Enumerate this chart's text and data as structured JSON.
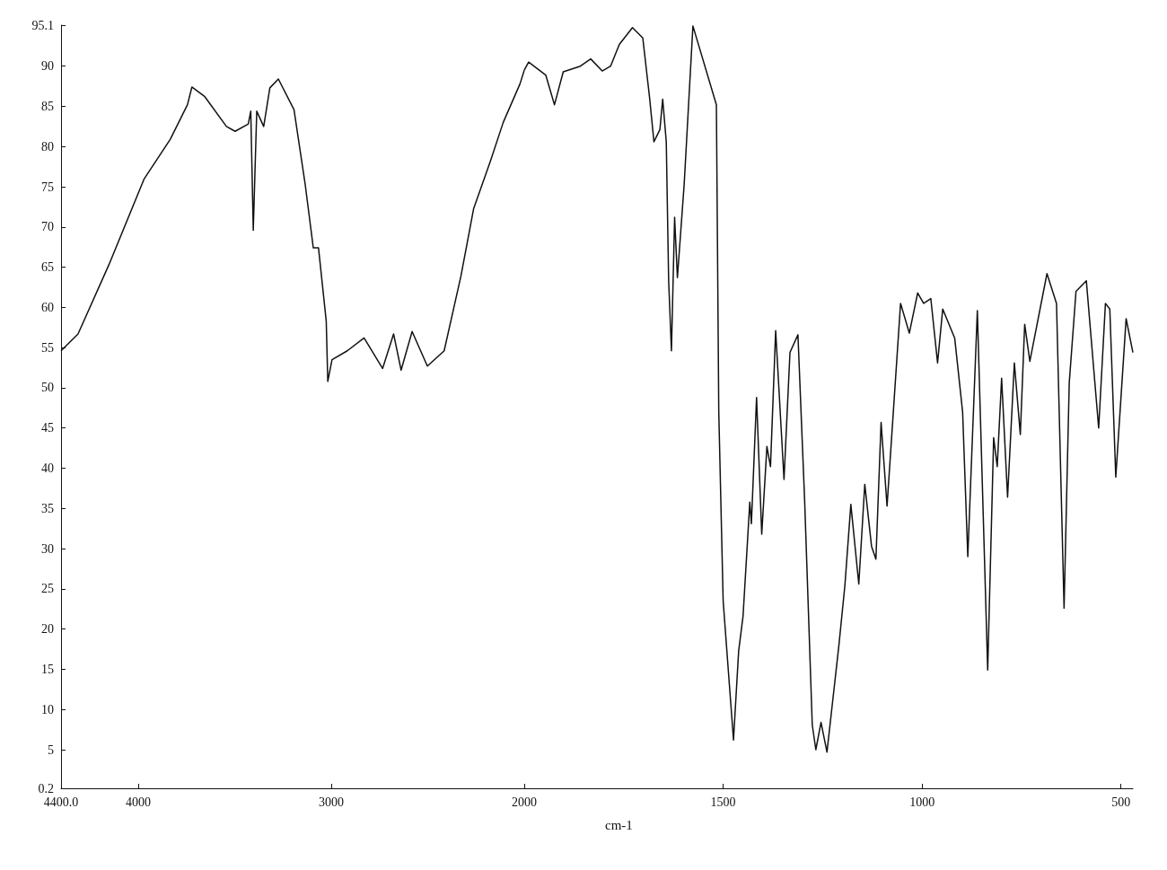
{
  "chart_data": [
    {
      "type": "line",
      "xlim": [
        4400,
        2000
      ],
      "ylim": [
        0.2,
        95.1
      ],
      "xticks": [
        {
          "value": 4400,
          "label": "4400.0"
        },
        4000,
        3000,
        2000
      ],
      "yticks": [
        0.2,
        5,
        10,
        15,
        20,
        25,
        30,
        35,
        40,
        45,
        50,
        55,
        60,
        65,
        70,
        75,
        80,
        85,
        90,
        95.1
      ],
      "grid": false,
      "marker": "none",
      "line_style": "solid",
      "series": [
        {
          "color": "#111111",
          "x": [
            4400,
            4312,
            4152,
            3969,
            3834,
            3745,
            3722,
            3655,
            3543,
            3498,
            3430,
            3417,
            3404,
            3386,
            3350,
            3318,
            3274,
            3193,
            3135,
            3093,
            3066,
            3026,
            3018,
            2996,
            2917,
            2830,
            2734,
            2677,
            2638,
            2581,
            2502,
            2415,
            2328,
            2262,
            2175,
            2109,
            2022,
            2000
          ],
          "values": [
            54.6,
            56.7,
            65.3,
            76.0,
            80.9,
            85.2,
            87.4,
            86.2,
            82.5,
            81.9,
            82.8,
            84.4,
            69.6,
            84.4,
            82.5,
            87.3,
            88.4,
            84.6,
            75.3,
            67.4,
            67.4,
            58.3,
            50.8,
            53.5,
            54.6,
            56.2,
            52.4,
            56.7,
            52.2,
            57.0,
            52.7,
            54.6,
            63.9,
            72.3,
            78.2,
            83.0,
            87.8,
            89.5
          ]
        }
      ]
    },
    {
      "type": "line",
      "xlabel": "cm-1",
      "xlim": [
        2000,
        470
      ],
      "ylim": [
        0.2,
        95.1
      ],
      "xticks": [
        1500,
        1000,
        500
      ],
      "tick_labels": "x",
      "grid": false,
      "marker": "none",
      "line_style": "solid",
      "series": [
        {
          "color": "#111111",
          "x": [
            2000,
            1989,
            1946,
            1924,
            1902,
            1859,
            1833,
            1804,
            1783,
            1761,
            1728,
            1702,
            1685,
            1674,
            1659,
            1652,
            1643,
            1637,
            1630,
            1622,
            1615,
            1598,
            1576,
            1517,
            1511,
            1500,
            1474,
            1461,
            1450,
            1433,
            1429,
            1416,
            1403,
            1390,
            1381,
            1368,
            1347,
            1332,
            1312,
            1295,
            1276,
            1267,
            1254,
            1239,
            1209,
            1194,
            1179,
            1159,
            1144,
            1127,
            1116,
            1103,
            1088,
            1054,
            1032,
            1011,
            996,
            978,
            961,
            948,
            918,
            898,
            885,
            861,
            835,
            820,
            811,
            800,
            785,
            768,
            753,
            742,
            729,
            686,
            662,
            643,
            630,
            613,
            587,
            556,
            539,
            528,
            513,
            487,
            470
          ],
          "values": [
            89.5,
            90.5,
            88.9,
            85.2,
            89.3,
            90.0,
            90.9,
            89.4,
            90.0,
            92.7,
            94.8,
            93.5,
            86.1,
            80.6,
            82.1,
            85.9,
            80.6,
            63.3,
            54.6,
            71.2,
            63.7,
            75.3,
            95.0,
            85.2,
            47.0,
            23.5,
            6.2,
            17.3,
            21.6,
            35.8,
            33.1,
            48.8,
            31.8,
            42.7,
            40.2,
            57.1,
            38.6,
            54.4,
            56.6,
            35.8,
            8.1,
            5.0,
            8.4,
            4.7,
            18.0,
            25.4,
            35.5,
            25.6,
            38.0,
            30.3,
            28.7,
            45.7,
            35.3,
            60.5,
            56.8,
            61.8,
            60.5,
            61.1,
            53.1,
            59.8,
            56.2,
            47.0,
            29.0,
            59.6,
            14.9,
            43.8,
            40.2,
            51.2,
            36.4,
            53.1,
            44.2,
            57.9,
            53.3,
            64.2,
            60.5,
            22.6,
            50.6,
            62.0,
            63.3,
            45.0,
            60.5,
            59.8,
            38.9,
            58.6,
            54.4
          ]
        }
      ]
    }
  ]
}
